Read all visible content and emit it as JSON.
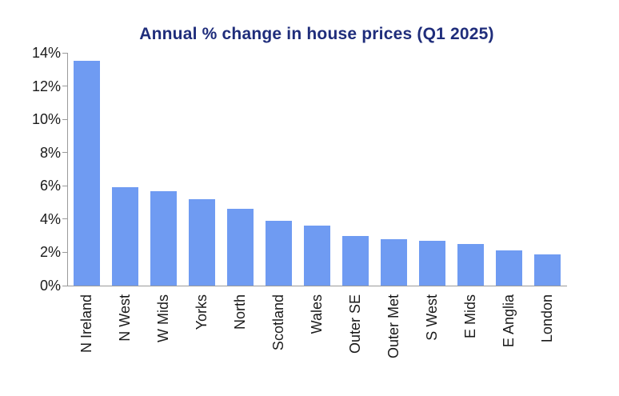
{
  "chart_data": {
    "type": "bar",
    "title": "Annual % change in house prices (Q1 2025)",
    "categories": [
      "N Ireland",
      "N West",
      "W Mids",
      "Yorks",
      "North",
      "Scotland",
      "Wales",
      "Outer SE",
      "Outer Met",
      "S West",
      "E Mids",
      "E Anglia",
      "London"
    ],
    "values": [
      13.5,
      5.9,
      5.7,
      5.2,
      4.6,
      3.9,
      3.6,
      3.0,
      2.8,
      2.7,
      2.5,
      2.1,
      1.9
    ],
    "xlabel": "",
    "ylabel": "",
    "ylim": [
      0,
      14
    ],
    "yticks": [
      0,
      2,
      4,
      6,
      8,
      10,
      12,
      14
    ],
    "ytick_labels": [
      "0%",
      "2%",
      "4%",
      "6%",
      "8%",
      "10%",
      "12%",
      "14%"
    ],
    "grid": false,
    "legend": false,
    "bar_color": "#6f9bf2",
    "title_color": "#1f2d7b",
    "axis_color": "#9a9a9a",
    "tick_label_color": "#1a1a1a"
  }
}
